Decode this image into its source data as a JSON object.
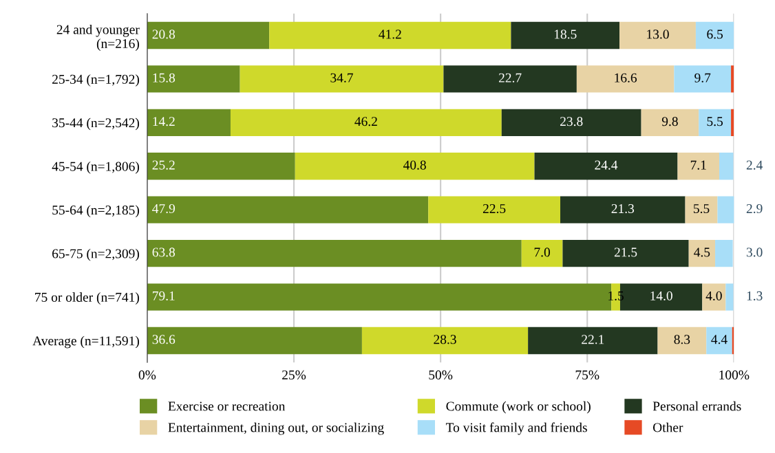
{
  "chart_data": {
    "type": "bar",
    "orientation": "horizontal",
    "stacked": true,
    "categories": [
      "24 and younger\n(n=216)",
      "25-34 (n=1,792)",
      "35-44 (n=2,542)",
      "45-54 (n=1,806)",
      "55-64 (n=2,185)",
      "65-75 (n=2,309)",
      "75 or older (n=741)",
      "Average (n=11,591)"
    ],
    "series": [
      {
        "name": "Exercise or recreation",
        "color": "#6b8e23",
        "values": [
          20.8,
          15.8,
          14.2,
          25.2,
          47.9,
          63.8,
          79.1,
          36.6
        ],
        "value_labels": [
          "20.8",
          "15.8",
          "14.2",
          "25.2",
          "47.9",
          "63.8",
          "79.1",
          "36.6"
        ]
      },
      {
        "name": "Commute (work or school)",
        "color": "#cfd92b",
        "values": [
          41.2,
          34.7,
          46.2,
          40.8,
          22.5,
          7.0,
          1.5,
          28.3
        ],
        "value_labels": [
          "41.2",
          "34.7",
          "46.2",
          "40.8",
          "22.5",
          "7.0",
          "1.5",
          "28.3"
        ]
      },
      {
        "name": "Personal errands",
        "color": "#233821",
        "values": [
          18.5,
          22.7,
          23.8,
          24.4,
          21.3,
          21.5,
          14.0,
          22.1
        ],
        "value_labels": [
          "18.5",
          "22.7",
          "23.8",
          "24.4",
          "21.3",
          "21.5",
          "14.0",
          "22.1"
        ]
      },
      {
        "name": "Entertainment, dining out, or socializing",
        "color": "#e8d3a5",
        "values": [
          13.0,
          16.6,
          9.8,
          7.1,
          5.5,
          4.5,
          4.0,
          8.3
        ],
        "value_labels": [
          "13.0",
          "16.6",
          "9.8",
          "7.1",
          "5.5",
          "4.5",
          "4.0",
          "8.3"
        ]
      },
      {
        "name": "To visit family and friends",
        "color": "#a8def8",
        "values": [
          6.5,
          9.7,
          5.5,
          2.4,
          2.9,
          3.0,
          1.3,
          4.4
        ],
        "value_labels": [
          "6.5",
          "9.7",
          "5.5",
          "2.4",
          "2.9",
          "3.0",
          "1.3",
          "4.4"
        ]
      },
      {
        "name": "Other",
        "color": "#e64a25",
        "values": [
          null,
          0.5,
          0.5,
          null,
          null,
          null,
          null,
          0.3
        ],
        "value_labels": [
          null,
          null,
          null,
          null,
          null,
          null,
          null,
          null
        ]
      }
    ],
    "xlim": [
      0,
      100
    ],
    "xticks": [
      {
        "value": 0,
        "label": "0%"
      },
      {
        "value": 25,
        "label": "25%"
      },
      {
        "value": 50,
        "label": "50%"
      },
      {
        "value": 75,
        "label": "75%"
      },
      {
        "value": 100,
        "label": "100%"
      }
    ],
    "grid": "x",
    "legend": "bottom"
  }
}
